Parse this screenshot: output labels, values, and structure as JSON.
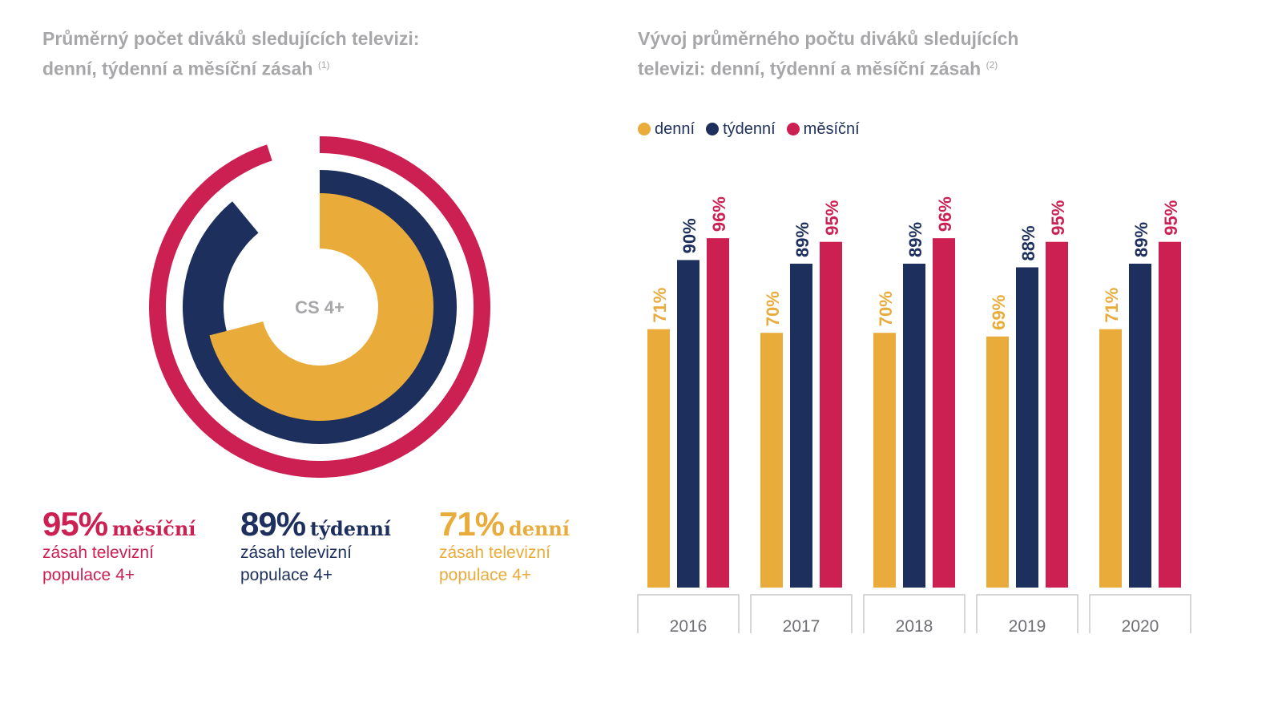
{
  "left": {
    "title_line1": "Průměrný počet diváků sledujících televizi:",
    "title_line2": "denní, týdenní a měsíční zásah",
    "footnote": "(1)",
    "center_label": "CS 4+",
    "stats": [
      {
        "value": "95%",
        "word": "měsíční",
        "line1": "zásah televizní",
        "line2": "populace 4+",
        "color": "#cc1f52"
      },
      {
        "value": "89%",
        "word": "týdenní",
        "line1": "zásah televizní",
        "line2": "populace 4+",
        "color": "#1d2f5c"
      },
      {
        "value": "71%",
        "word": "denní",
        "line1": "zásah televizní",
        "line2": "populace 4+",
        "color": "#e9ab3a"
      }
    ]
  },
  "right": {
    "title_line1": "Vývoj průměrného počtu diváků sledujících",
    "title_line2": "televizi: denní, týdenní a měsíční zásah",
    "footnote": "(2)"
  },
  "chart_data": [
    {
      "type": "pie",
      "variant": "radial-rings",
      "center_label": "CS 4+",
      "series": [
        {
          "name": "měsíční",
          "value": 95,
          "color": "#cc1f52"
        },
        {
          "name": "týdenní",
          "value": 89,
          "color": "#1d2f5c"
        },
        {
          "name": "denní",
          "value": 71,
          "color": "#e9ab3a"
        }
      ]
    },
    {
      "type": "bar",
      "categories": [
        "2016",
        "2017",
        "2018",
        "2019",
        "2020"
      ],
      "legend": "top-left",
      "grid": false,
      "ylim": [
        0,
        100
      ],
      "series": [
        {
          "name": "denní",
          "color": "#e9ab3a",
          "values": [
            71,
            70,
            70,
            69,
            71
          ]
        },
        {
          "name": "týdenní",
          "color": "#1d2f5c",
          "values": [
            90,
            89,
            89,
            88,
            89
          ]
        },
        {
          "name": "měsíční",
          "color": "#cc1f52",
          "values": [
            96,
            95,
            96,
            95,
            95
          ]
        }
      ]
    }
  ]
}
